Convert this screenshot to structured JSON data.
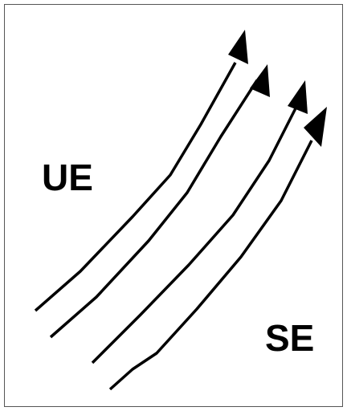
{
  "labels": {
    "left": "UE",
    "right": "SE"
  }
}
